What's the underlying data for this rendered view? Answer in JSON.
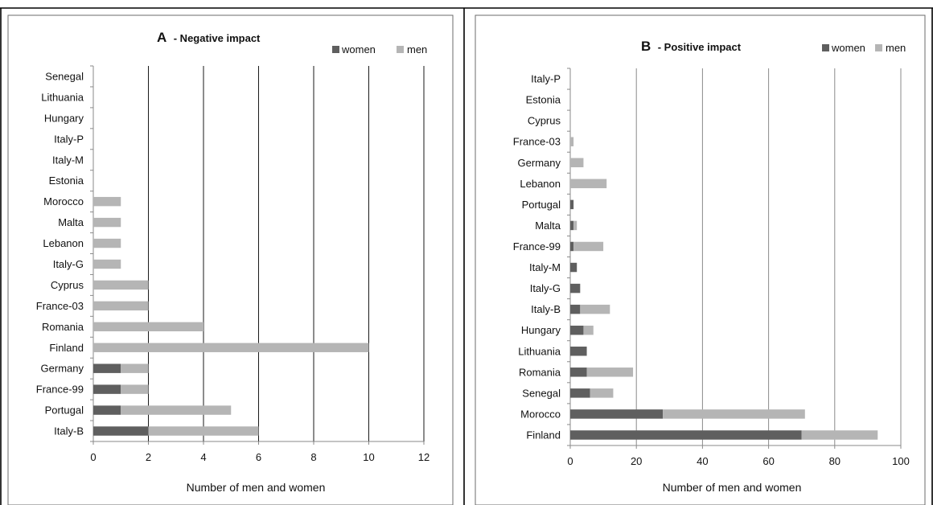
{
  "colors": {
    "women": "#5f5f5f",
    "men": "#b5b5b5"
  },
  "chart_data": [
    {
      "type": "bar",
      "orientation": "horizontal",
      "stacked": true,
      "title_letter": "A",
      "title_rest": "- Negative impact",
      "xlabel": "Number of men and women",
      "xlim": [
        0,
        12
      ],
      "xticks": [
        0,
        2,
        4,
        6,
        8,
        10,
        12
      ],
      "legend": "top-right",
      "categories": [
        "Senegal",
        "Lithuania",
        "Hungary",
        "Italy-P",
        "Italy-M",
        "Estonia",
        "Morocco",
        "Malta",
        "Lebanon",
        "Italy-G",
        "Cyprus",
        "France-03",
        "Romania",
        "Finland",
        "Germany",
        "France-99",
        "Portugal",
        "Italy-B"
      ],
      "series": [
        {
          "name": "women",
          "values": [
            0,
            0,
            0,
            0,
            0,
            0,
            0,
            0,
            0,
            0,
            0,
            0,
            0,
            0,
            1,
            1,
            1,
            2
          ]
        },
        {
          "name": "men",
          "values": [
            0,
            0,
            0,
            0,
            0,
            0,
            1,
            1,
            1,
            1,
            2,
            2,
            4,
            10,
            1,
            1,
            4,
            4
          ]
        }
      ]
    },
    {
      "type": "bar",
      "orientation": "horizontal",
      "stacked": true,
      "title_letter": "B",
      "title_rest": "- Positive impact",
      "xlabel": "Number of men and women",
      "xlim": [
        0,
        100
      ],
      "xticks": [
        0,
        20,
        40,
        60,
        80,
        100
      ],
      "legend": "top-right",
      "categories": [
        "Italy-P",
        "Estonia",
        "Cyprus",
        "France-03",
        "Germany",
        "Lebanon",
        "Portugal",
        "Malta",
        "France-99",
        "Italy-M",
        "Italy-G",
        "Italy-B",
        "Hungary",
        "Lithuania",
        "Romania",
        "Senegal",
        "Morocco",
        "Finland"
      ],
      "series": [
        {
          "name": "women",
          "values": [
            0,
            0,
            0,
            0,
            0,
            0,
            1,
            1,
            1,
            2,
            3,
            3,
            4,
            5,
            5,
            6,
            28,
            70
          ]
        },
        {
          "name": "men",
          "values": [
            0,
            0,
            0,
            1,
            4,
            11,
            0,
            1,
            9,
            0,
            0,
            9,
            3,
            0,
            14,
            7,
            43,
            23
          ]
        }
      ]
    }
  ]
}
